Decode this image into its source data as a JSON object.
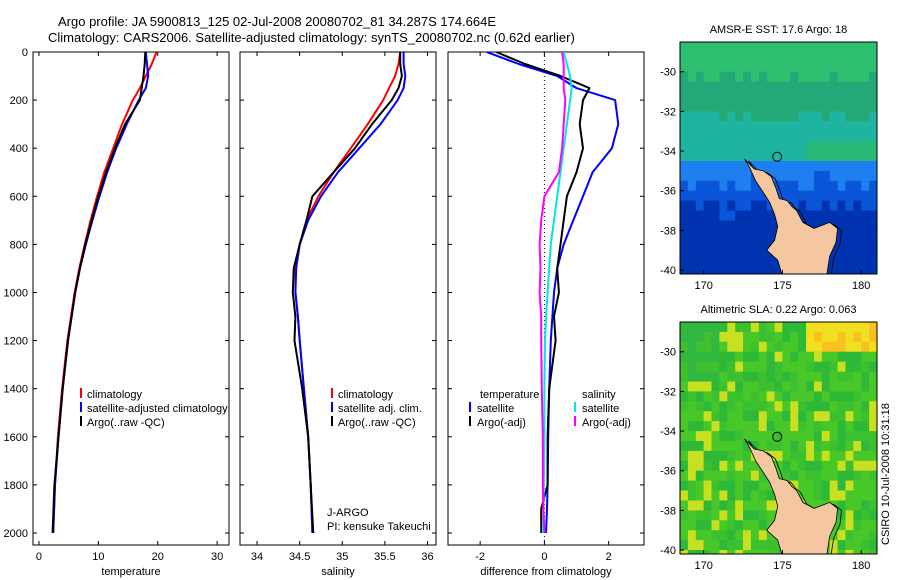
{
  "title_line1": "Argo profile: JA 5900813_125 02-Jul-2008 20080702_81 34.287S 174.664E",
  "title_line2": "Climatology: CARS2006. Satellite-adjusted climatology: synTS_20080702.nc (0.62d earlier)",
  "side_label": "CSIRO 10-Jul-2008 10:31:18",
  "colors": {
    "climatology": "#ff0000",
    "satellite": "#0000ff",
    "argo": "#000000",
    "argo_adj_salinity": "#ff00ff",
    "satellite_salinity": "#00e5e5",
    "land": "#f5c7a0"
  },
  "chart_data": [
    {
      "type": "line",
      "xlabel": "temperature",
      "ylabel": "",
      "xlim": [
        -1,
        32
      ],
      "ylim": [
        2050,
        0
      ],
      "x_ticks": [
        0,
        10,
        20,
        30
      ],
      "y_ticks": [
        0,
        200,
        400,
        600,
        800,
        1000,
        1200,
        1400,
        1600,
        1800,
        2000
      ],
      "legend": [
        "climatology",
        "satellite-adjusted climatology",
        "Argo(..raw -QC)"
      ],
      "legend_placement": "lower-right",
      "depth": [
        0,
        50,
        100,
        150,
        200,
        300,
        400,
        500,
        600,
        700,
        800,
        900,
        1000,
        1200,
        1400,
        1600,
        1800,
        2000
      ],
      "series": [
        {
          "name": "climatology",
          "color": "#ff0000",
          "values": [
            19.8,
            19.0,
            18.0,
            17.0,
            15.8,
            14.0,
            12.5,
            11.0,
            9.8,
            8.7,
            7.7,
            6.8,
            6.0,
            4.8,
            3.9,
            3.2,
            2.7,
            2.4
          ]
        },
        {
          "name": "satellite-adjusted climatology",
          "color": "#0000ff",
          "values": [
            18.0,
            18.2,
            18.4,
            18.0,
            16.8,
            14.8,
            13.0,
            11.5,
            10.2,
            9.0,
            7.9,
            6.9,
            6.1,
            4.9,
            4.0,
            3.3,
            2.7,
            2.4
          ]
        },
        {
          "name": "Argo(..raw -QC)",
          "color": "#000000",
          "values": [
            17.9,
            17.8,
            17.6,
            17.3,
            17.0,
            14.5,
            12.8,
            11.3,
            10.0,
            8.9,
            7.8,
            6.9,
            6.1,
            4.9,
            4.0,
            3.3,
            2.6,
            2.3
          ]
        }
      ]
    },
    {
      "type": "line",
      "xlabel": "salinity",
      "ylabel": "",
      "xlim": [
        33.8,
        36.1
      ],
      "ylim": [
        2050,
        0
      ],
      "x_ticks": [
        34,
        34.5,
        35,
        35.5,
        36
      ],
      "y_ticks": [],
      "legend": [
        "climatology",
        "satellite adj. clim.",
        "Argo(..raw -QC)"
      ],
      "legend_placement": "lower-right",
      "annotations": [
        "J-ARGO",
        "PI: kensuke Takeuchi"
      ],
      "depth": [
        0,
        50,
        100,
        150,
        200,
        300,
        400,
        500,
        600,
        700,
        800,
        900,
        1000,
        1100,
        1200,
        1400,
        1600,
        1800,
        2000
      ],
      "series": [
        {
          "name": "climatology",
          "color": "#ff0000",
          "values": [
            35.68,
            35.66,
            35.62,
            35.55,
            35.48,
            35.3,
            35.1,
            34.9,
            34.72,
            34.58,
            34.5,
            34.45,
            34.45,
            34.48,
            34.5,
            34.55,
            34.6,
            34.63,
            34.65
          ]
        },
        {
          "name": "satellite adj. clim.",
          "color": "#0000ff",
          "values": [
            35.72,
            35.72,
            35.74,
            35.72,
            35.65,
            35.45,
            35.2,
            34.95,
            34.75,
            34.6,
            34.5,
            34.46,
            34.45,
            34.48,
            34.5,
            34.55,
            34.6,
            34.63,
            34.65
          ]
        },
        {
          "name": "Argo(..raw -QC)",
          "color": "#000000",
          "values": [
            35.68,
            35.68,
            35.7,
            35.66,
            35.58,
            35.35,
            35.15,
            34.9,
            34.65,
            34.58,
            34.5,
            34.43,
            34.42,
            34.45,
            34.44,
            34.53,
            34.6,
            34.63,
            34.66
          ]
        }
      ]
    },
    {
      "type": "line",
      "xlabel": "difference from climatology",
      "ylabel": "",
      "xlim": [
        -3,
        3.1
      ],
      "ylim": [
        2050,
        0
      ],
      "x_ticks": [
        -2,
        0,
        2
      ],
      "y_ticks": [],
      "legend_left_title": "temperature",
      "legend_right_title": "salinity",
      "legend_left": [
        "satellite",
        "Argo(-adj)"
      ],
      "legend_right": [
        "satellite",
        "Argo(-adj)"
      ],
      "legend_placement": "lower",
      "zero_line": "dotted",
      "depth": [
        0,
        50,
        100,
        150,
        200,
        300,
        400,
        500,
        600,
        700,
        800,
        900,
        1000,
        1100,
        1200,
        1400,
        1600,
        1800,
        1900,
        2000
      ],
      "series": [
        {
          "name": "temperature satellite",
          "color": "#0000ff",
          "values": [
            -1.8,
            -0.8,
            0.4,
            1.0,
            2.2,
            2.3,
            2.1,
            1.5,
            1.2,
            0.9,
            0.6,
            0.4,
            0.3,
            0.25,
            0.2,
            0.15,
            0.12,
            0.1,
            0.08,
            0.05
          ]
        },
        {
          "name": "temperature Argo(-adj)",
          "color": "#000000",
          "values": [
            -1.5,
            -0.6,
            0.5,
            1.4,
            1.2,
            1.1,
            1.2,
            1.0,
            0.7,
            0.6,
            0.5,
            0.4,
            0.45,
            0.3,
            0.35,
            0.15,
            0.1,
            0.1,
            -0.1,
            -0.1
          ]
        },
        {
          "name": "salinity satellite",
          "color": "#00e5e5",
          "values": [
            0.6,
            0.7,
            0.8,
            0.85,
            0.8,
            0.7,
            0.6,
            0.5,
            0.4,
            0.3,
            0.2,
            0.15,
            0.1,
            0.05,
            0.02,
            0.0,
            0.0,
            -0.02,
            -0.03,
            -0.05
          ]
        },
        {
          "name": "salinity Argo(-adj)",
          "color": "#ff00ff",
          "values": [
            0.55,
            0.6,
            0.6,
            0.6,
            0.65,
            0.6,
            0.55,
            0.45,
            0.0,
            -0.1,
            -0.15,
            -0.12,
            -0.15,
            -0.1,
            -0.1,
            -0.08,
            -0.05,
            -0.05,
            -0.03,
            0.0
          ]
        }
      ]
    },
    {
      "type": "heatmap",
      "title": "AMSR-E SST: 17.6 Argo: 18",
      "xlim": [
        168.5,
        181
      ],
      "ylim": [
        -40.2,
        -28.5
      ],
      "x_ticks": [
        170,
        175,
        180
      ],
      "y_ticks": [
        -30,
        -32,
        -34,
        -36,
        -38,
        -40
      ],
      "argo_location": {
        "lon": 174.664,
        "lat": -34.287
      },
      "colormap": "jet"
    },
    {
      "type": "heatmap",
      "title": "Altimetric SLA: 0.22 Argo: 0.063",
      "xlim": [
        168.5,
        181
      ],
      "ylim": [
        -40.2,
        -28.5
      ],
      "x_ticks": [
        170,
        175,
        180
      ],
      "y_ticks": [
        -30,
        -32,
        -34,
        -36,
        -38,
        -40
      ],
      "argo_location": {
        "lon": 174.664,
        "lat": -34.287
      },
      "colormap": "jet"
    }
  ]
}
